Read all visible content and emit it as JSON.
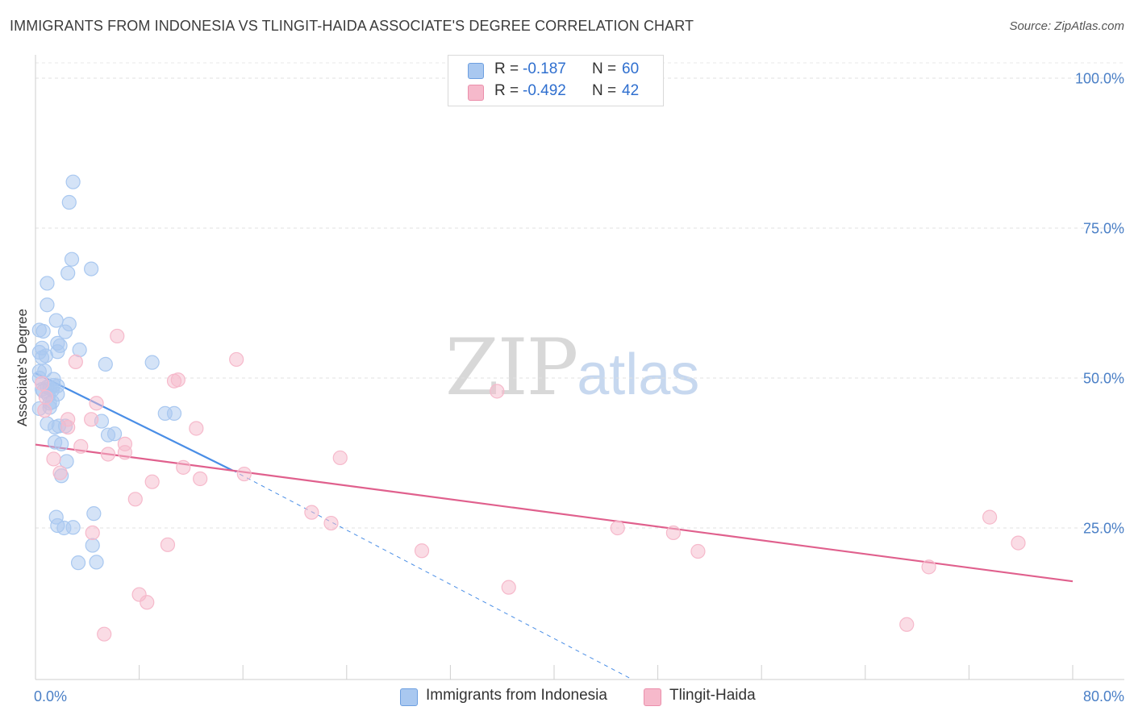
{
  "header": {
    "title": "IMMIGRANTS FROM INDONESIA VS TLINGIT-HAIDA ASSOCIATE'S DEGREE CORRELATION CHART",
    "source": "Source: ZipAtlas.com"
  },
  "watermark": {
    "zip": "ZIP",
    "atlas": "atlas"
  },
  "legend": {
    "rows": [
      {
        "r_label": "R =",
        "r_value": "-0.187",
        "n_label": "N =",
        "n_value": "60",
        "color": "#a9c8f0"
      },
      {
        "r_label": "R =",
        "r_value": "-0.492",
        "n_label": "N =",
        "n_value": "42",
        "color": "#f6b9cb"
      }
    ]
  },
  "bottom_legend": [
    {
      "label": "Immigrants from Indonesia",
      "color": "#a9c8f0"
    },
    {
      "label": "Tlingit-Haida",
      "color": "#f6b9cb"
    }
  ],
  "chart_data": {
    "type": "scatter",
    "title": "IMMIGRANTS FROM INDONESIA VS TLINGIT-HAIDA ASSOCIATE'S DEGREE CORRELATION CHART",
    "xlabel": "",
    "ylabel": "Associate's Degree",
    "xlim": [
      0,
      80
    ],
    "ylim": [
      0,
      100
    ],
    "x_tick_labels": [
      {
        "value": 0,
        "label": "0.0%"
      },
      {
        "value": 80,
        "label": "80.0%"
      }
    ],
    "y_tick_labels": [
      {
        "value": 25,
        "label": "25.0%"
      },
      {
        "value": 50,
        "label": "50.0%"
      },
      {
        "value": 75,
        "label": "75.0%"
      },
      {
        "value": 100,
        "label": "100.0%"
      }
    ],
    "grid": true,
    "series": [
      {
        "name": "Immigrants from Indonesia",
        "color": "#4a8ee6",
        "fill": "#a9c8f0",
        "points": [
          [
            2.9,
            82.7
          ],
          [
            2.6,
            79.3
          ],
          [
            2.8,
            69.8
          ],
          [
            4.3,
            68.2
          ],
          [
            2.5,
            67.5
          ],
          [
            0.9,
            65.8
          ],
          [
            0.9,
            62.2
          ],
          [
            1.6,
            59.6
          ],
          [
            2.6,
            59.0
          ],
          [
            0.3,
            58.0
          ],
          [
            0.6,
            57.8
          ],
          [
            2.3,
            57.7
          ],
          [
            1.7,
            55.8
          ],
          [
            1.9,
            55.4
          ],
          [
            0.5,
            55.0
          ],
          [
            0.3,
            54.3
          ],
          [
            3.4,
            54.7
          ],
          [
            1.7,
            54.4
          ],
          [
            0.8,
            53.7
          ],
          [
            0.5,
            53.4
          ],
          [
            5.4,
            52.3
          ],
          [
            9.0,
            52.6
          ],
          [
            0.3,
            51.1
          ],
          [
            0.7,
            51.2
          ],
          [
            0.3,
            50.0
          ],
          [
            1.4,
            49.8
          ],
          [
            1.4,
            48.8
          ],
          [
            0.9,
            48.5
          ],
          [
            1.1,
            48.3
          ],
          [
            1.7,
            48.7
          ],
          [
            0.5,
            48.1
          ],
          [
            0.6,
            47.8
          ],
          [
            1.3,
            48.0
          ],
          [
            1.7,
            47.3
          ],
          [
            1.0,
            47.1
          ],
          [
            1.1,
            45.8
          ],
          [
            1.3,
            46.0
          ],
          [
            1.1,
            45.1
          ],
          [
            0.3,
            44.9
          ],
          [
            10.0,
            44.1
          ],
          [
            10.7,
            44.1
          ],
          [
            5.1,
            42.8
          ],
          [
            0.9,
            42.4
          ],
          [
            1.8,
            42.0
          ],
          [
            2.3,
            42.0
          ],
          [
            1.5,
            41.8
          ],
          [
            5.6,
            40.5
          ],
          [
            6.1,
            40.7
          ],
          [
            1.5,
            39.3
          ],
          [
            2.0,
            39.0
          ],
          [
            2.4,
            36.1
          ],
          [
            2.0,
            33.7
          ],
          [
            4.5,
            27.4
          ],
          [
            1.6,
            26.8
          ],
          [
            1.7,
            25.4
          ],
          [
            2.2,
            25.0
          ],
          [
            2.9,
            25.1
          ],
          [
            4.4,
            22.1
          ],
          [
            3.3,
            19.2
          ],
          [
            4.7,
            19.3
          ]
        ]
      },
      {
        "name": "Tlingit-Haida",
        "color": "#e0608d",
        "fill": "#f6b9cb",
        "points": [
          [
            6.3,
            57.0
          ],
          [
            15.5,
            53.1
          ],
          [
            3.1,
            52.7
          ],
          [
            11.0,
            49.7
          ],
          [
            10.7,
            49.5
          ],
          [
            0.5,
            49.1
          ],
          [
            35.6,
            47.8
          ],
          [
            4.7,
            45.8
          ],
          [
            0.7,
            44.6
          ],
          [
            4.3,
            43.1
          ],
          [
            2.5,
            43.1
          ],
          [
            2.5,
            41.8
          ],
          [
            12.4,
            41.6
          ],
          [
            6.9,
            39.0
          ],
          [
            3.5,
            38.6
          ],
          [
            6.9,
            37.6
          ],
          [
            5.6,
            37.3
          ],
          [
            23.5,
            36.7
          ],
          [
            1.4,
            36.5
          ],
          [
            11.4,
            35.1
          ],
          [
            1.9,
            34.2
          ],
          [
            16.1,
            34.0
          ],
          [
            12.7,
            33.2
          ],
          [
            9.0,
            32.7
          ],
          [
            7.7,
            29.8
          ],
          [
            21.3,
            27.6
          ],
          [
            22.8,
            25.8
          ],
          [
            73.6,
            26.8
          ],
          [
            44.9,
            25.0
          ],
          [
            49.2,
            24.2
          ],
          [
            4.4,
            24.2
          ],
          [
            10.2,
            22.2
          ],
          [
            75.8,
            22.5
          ],
          [
            29.8,
            21.2
          ],
          [
            51.1,
            21.1
          ],
          [
            68.9,
            18.5
          ],
          [
            36.5,
            15.1
          ],
          [
            8.0,
            13.9
          ],
          [
            8.6,
            12.6
          ],
          [
            67.2,
            8.9
          ],
          [
            5.3,
            7.3
          ],
          [
            0.8,
            46.8
          ]
        ]
      }
    ],
    "trendlines": [
      {
        "series": "Immigrants from Indonesia",
        "solid": [
          [
            0,
            50.8
          ],
          [
            15.2,
            34.6
          ]
        ],
        "dashed": [
          [
            15.2,
            34.6
          ],
          [
            45.8,
            0
          ]
        ]
      },
      {
        "series": "Tlingit-Haida",
        "solid": [
          [
            0,
            38.9
          ],
          [
            80,
            16.1
          ]
        ]
      }
    ]
  }
}
